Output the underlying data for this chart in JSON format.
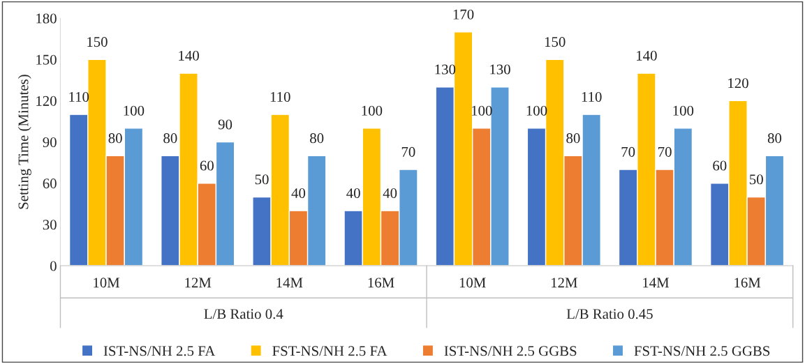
{
  "chart_data": {
    "type": "bar",
    "ylabel": "Setting Time (Minutes)",
    "categories": [
      "10M",
      "12M",
      "14M",
      "16M",
      "10M",
      "12M",
      "14M",
      "16M"
    ],
    "series": [
      {
        "name": "IST-NS/NH 2.5 FA",
        "color": "#4472c4",
        "values": [
          110,
          80,
          50,
          40,
          130,
          100,
          70,
          60
        ]
      },
      {
        "name": "FST-NS/NH 2.5 FA",
        "color": "#ffc000",
        "values": [
          150,
          140,
          110,
          100,
          170,
          150,
          140,
          120
        ]
      },
      {
        "name": "IST-NS/NH 2.5 GGBS",
        "color": "#ed7d31",
        "values": [
          80,
          60,
          40,
          40,
          100,
          80,
          70,
          50
        ]
      },
      {
        "name": "FST-NS/NH 2.5 GGBS",
        "color": "#5b9bd5",
        "values": [
          100,
          90,
          80,
          70,
          130,
          110,
          100,
          80
        ]
      }
    ],
    "annotations": [
      "L/B Ratio 0.4",
      "L/B Ratio 0.45"
    ],
    "ylim": [
      0,
      180
    ],
    "yticks": [
      0,
      30,
      60,
      90,
      120,
      150,
      180
    ],
    "data_labels": true,
    "grid": false,
    "legend": "bottom"
  }
}
